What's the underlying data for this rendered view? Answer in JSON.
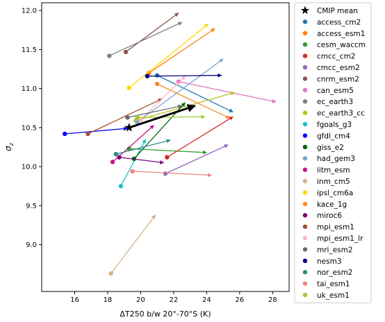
{
  "chart_data": {
    "type": "scatter",
    "title": "",
    "xlabel": "ΔT250 b/w 20°-70°S (K)",
    "ylabel": "σz",
    "xlim": [
      14.0,
      29.0
    ],
    "ylim": [
      8.4,
      12.1
    ],
    "xticks": [
      16,
      18,
      20,
      22,
      24,
      26,
      28
    ],
    "yticks": [
      9.0,
      9.5,
      10.0,
      10.5,
      11.0,
      11.5,
      12.0
    ],
    "xtick_labels": [
      "16",
      "18",
      "20",
      "22",
      "24",
      "26",
      "28"
    ],
    "ytick_labels": [
      "9.0",
      "9.5",
      "10.0",
      "10.5",
      "11.0",
      "11.5",
      "12.0"
    ],
    "grid": false,
    "legend_position": "right",
    "series": [
      {
        "name": "CMIP mean",
        "color": "#000000",
        "marker": "star",
        "start": [
          19.3,
          10.5
        ],
        "end": [
          23.3,
          10.78
        ]
      },
      {
        "name": "access_cm2",
        "color": "#1f77b4",
        "marker": "circle",
        "start": [
          21.0,
          11.17
        ],
        "end": [
          25.6,
          10.7
        ]
      },
      {
        "name": "access_esm1",
        "color": "#ff7f0e",
        "marker": "circle",
        "start": [
          20.5,
          11.2
        ],
        "end": [
          24.5,
          11.77
        ]
      },
      {
        "name": "cesm_waccm",
        "color": "#2ca02c",
        "marker": "circle",
        "start": [
          19.3,
          10.23
        ],
        "end": [
          24.0,
          10.18
        ]
      },
      {
        "name": "cmcc_cm2",
        "color": "#d62728",
        "marker": "circle",
        "start": [
          21.6,
          10.12
        ],
        "end": [
          25.6,
          10.64
        ]
      },
      {
        "name": "cmcc_esm2",
        "color": "#9467bd",
        "marker": "circle",
        "start": [
          21.5,
          9.91
        ],
        "end": [
          25.3,
          10.28
        ]
      },
      {
        "name": "cnrm_esm2",
        "color": "#8c564b",
        "marker": "circle",
        "start": [
          19.1,
          11.47
        ],
        "end": [
          22.3,
          11.97
        ]
      },
      {
        "name": "can_esm5",
        "color": "#e377c2",
        "marker": "circle",
        "start": [
          22.3,
          11.09
        ],
        "end": [
          28.2,
          10.83
        ]
      },
      {
        "name": "ec_earth3",
        "color": "#7f7f7f",
        "marker": "circle",
        "start": [
          18.1,
          11.42
        ],
        "end": [
          22.5,
          11.85
        ]
      },
      {
        "name": "ec_earth3_cc",
        "color": "#bcbd22",
        "marker": "circle",
        "start": [
          19.7,
          10.59
        ],
        "end": [
          25.7,
          10.95
        ]
      },
      {
        "name": "fgoals_g3",
        "color": "#17becf",
        "marker": "circle",
        "start": [
          18.8,
          9.75
        ],
        "end": [
          20.3,
          10.35
        ]
      },
      {
        "name": "gfdl_cm4",
        "color": "#0000ff",
        "marker": "circle",
        "start": [
          15.4,
          10.42
        ],
        "end": [
          19.2,
          10.49
        ]
      },
      {
        "name": "giss_e2",
        "color": "#006400",
        "marker": "circle",
        "start": [
          19.6,
          10.1
        ],
        "end": [
          22.7,
          10.82
        ]
      },
      {
        "name": "had_gem3",
        "color": "#7ba7cc",
        "marker": "circle",
        "start": [
          19.8,
          10.57
        ],
        "end": [
          25.0,
          11.38
        ]
      },
      {
        "name": "iitm_esm",
        "color": "#c71585",
        "marker": "circle",
        "start": [
          18.3,
          10.06
        ],
        "end": [
          20.8,
          10.53
        ]
      },
      {
        "name": "inm_cm5",
        "color": "#d2b48c",
        "marker": "circle",
        "start": [
          18.2,
          8.63
        ],
        "end": [
          20.9,
          9.38
        ]
      },
      {
        "name": "ipsl_cm6a",
        "color": "#ffd700",
        "marker": "circle",
        "start": [
          19.3,
          11.01
        ],
        "end": [
          24.1,
          11.83
        ]
      },
      {
        "name": "kace_1g",
        "color": "#f28e2b",
        "marker": "circle",
        "start": [
          21.0,
          11.06
        ],
        "end": [
          25.4,
          10.62
        ]
      },
      {
        "name": "miroc6",
        "color": "#800080",
        "marker": "circle",
        "start": [
          18.7,
          10.12
        ],
        "end": [
          21.4,
          10.05
        ]
      },
      {
        "name": "mpi_esm1",
        "color": "#a0522d",
        "marker": "circle",
        "start": [
          16.8,
          10.42
        ],
        "end": [
          21.3,
          10.87
        ]
      },
      {
        "name": "mpi_esm1_lr",
        "color": "#ffb6c1",
        "marker": "circle",
        "start": [
          20.0,
          10.6
        ],
        "end": [
          22.7,
          11.16
        ]
      },
      {
        "name": "mri_esm2",
        "color": "#696969",
        "marker": "circle",
        "start": [
          19.2,
          10.63
        ],
        "end": [
          22.5,
          10.78
        ]
      },
      {
        "name": "nesm3",
        "color": "#000080",
        "marker": "circle",
        "start": [
          20.4,
          11.16
        ],
        "end": [
          24.9,
          11.17
        ]
      },
      {
        "name": "nor_esm2",
        "color": "#2a8c8c",
        "marker": "circle",
        "start": [
          18.5,
          10.16
        ],
        "end": [
          21.8,
          10.34
        ]
      },
      {
        "name": "tai_esm1",
        "color": "#f08080",
        "marker": "circle",
        "start": [
          19.5,
          9.94
        ],
        "end": [
          24.3,
          9.89
        ]
      },
      {
        "name": "uk_esm1",
        "color": "#9acd32",
        "marker": "circle",
        "start": [
          19.8,
          10.63
        ],
        "end": [
          23.9,
          10.64
        ]
      }
    ]
  }
}
